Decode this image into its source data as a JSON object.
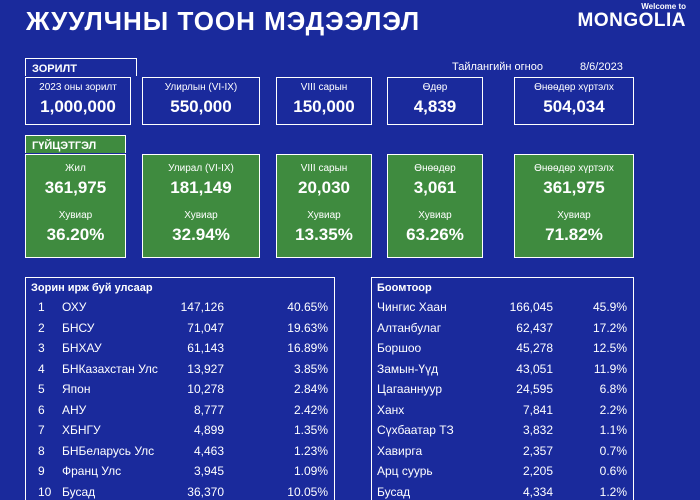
{
  "header": {
    "title": "ЖУУЛЧНЫ ТООН МЭДЭЭЛЭЛ",
    "brand_welcome": "Welcome to",
    "brand_name": "MONGOLIA"
  },
  "report": {
    "date_label": "Тайлангийн огноо",
    "date_value": "8/6/2023"
  },
  "goal": {
    "section_label": "ЗОРИЛТ",
    "items": [
      {
        "label": "2023 оны зорилт",
        "value": "1,000,000"
      },
      {
        "label": "Улирлын (VI-IX)",
        "value": "550,000"
      },
      {
        "label": "VIII сарын",
        "value": "150,000"
      },
      {
        "label": "Өдөр",
        "value": "4,839"
      },
      {
        "label": "Өнөөдөр хүртэлх",
        "value": "504,034"
      }
    ]
  },
  "performance": {
    "section_label": "ГҮЙЦЭТГЭЛ",
    "items": [
      {
        "label": "Жил",
        "value": "361,975",
        "pct_label": "Хувиар",
        "pct": "36.20%"
      },
      {
        "label": "Улирал (VI-IX)",
        "value": "181,149",
        "pct_label": "Хувиар",
        "pct": "32.94%"
      },
      {
        "label": "VIII сарын",
        "value": "20,030",
        "pct_label": "Хувиар",
        "pct": "13.35%"
      },
      {
        "label": "Өнөөдөр",
        "value": "3,061",
        "pct_label": "Хувиар",
        "pct": "63.26%"
      },
      {
        "label": "Өнөөдөр хүртэлх",
        "value": "361,975",
        "pct_label": "Хувиар",
        "pct": "71.82%"
      }
    ]
  },
  "countries": {
    "title": "Зорин ирж буй улсаар",
    "rows": [
      {
        "rank": "1",
        "name": "ОХУ",
        "count": "147,126",
        "pct": "40.65%"
      },
      {
        "rank": "2",
        "name": "БНСУ",
        "count": "71,047",
        "pct": "19.63%"
      },
      {
        "rank": "3",
        "name": "БНХАУ",
        "count": "61,143",
        "pct": "16.89%"
      },
      {
        "rank": "4",
        "name": "БНКазахстан Улс",
        "count": "13,927",
        "pct": "3.85%"
      },
      {
        "rank": "5",
        "name": "Япон",
        "count": "10,278",
        "pct": "2.84%"
      },
      {
        "rank": "6",
        "name": "АНУ",
        "count": "8,777",
        "pct": "2.42%"
      },
      {
        "rank": "7",
        "name": "ХБНГУ",
        "count": "4,899",
        "pct": "1.35%"
      },
      {
        "rank": "8",
        "name": "БНБеларусь Улс",
        "count": "4,463",
        "pct": "1.23%"
      },
      {
        "rank": "9",
        "name": "Франц Улс",
        "count": "3,945",
        "pct": "1.09%"
      },
      {
        "rank": "10",
        "name": "Бусад",
        "count": "36,370",
        "pct": "10.05%"
      }
    ]
  },
  "borders": {
    "title": "Боомтоор",
    "rows": [
      {
        "name": "Чингис Хаан",
        "count": "166,045",
        "pct": "45.9%"
      },
      {
        "name": "Алтанбулаг",
        "count": "62,437",
        "pct": "17.2%"
      },
      {
        "name": "Борshoo",
        "count": "45,278",
        "pct": "12.5%"
      },
      {
        "name": "Замын-Үүд",
        "count": "43,051",
        "pct": "11.9%"
      },
      {
        "name": "Цагааннуур",
        "count": "24,595",
        "pct": "6.8%"
      },
      {
        "name": "Ханх",
        "count": "7,841",
        "pct": "2.2%"
      },
      {
        "name": "Сүхбаатар ТЗ",
        "count": "3,832",
        "pct": "1.1%"
      },
      {
        "name": "Хавирга",
        "count": "2,357",
        "pct": "0.7%"
      },
      {
        "name": "Арц суурь",
        "count": "2,205",
        "pct": "0.6%"
      },
      {
        "name": "Бусад",
        "count": "4,334",
        "pct": "1.2%"
      }
    ]
  },
  "colors": {
    "background": "#1a2a9c",
    "performance_green": "#3f8b3f",
    "text": "#ffffff"
  }
}
